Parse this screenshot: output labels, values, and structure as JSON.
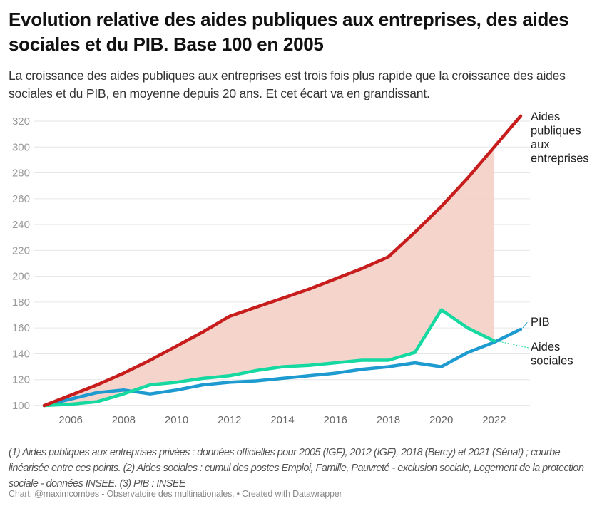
{
  "chart_data": {
    "type": "line",
    "title": "Evolution relative des aides publiques aux entreprises, des aides sociales et du PIB. Base 100 en 2005",
    "subtitle": "La croissance des aides publiques aux entreprises est trois fois plus rapide que la croissance des aides sociales et du PIB, en moyenne depuis 20 ans. Et cet écart va en grandissant.",
    "xlim": [
      2005,
      2023
    ],
    "ylim": [
      100,
      330
    ],
    "x_ticks": [
      "2006",
      "2008",
      "2010",
      "2012",
      "2014",
      "2016",
      "2018",
      "2020",
      "2022"
    ],
    "y_ticks": [
      "100",
      "120",
      "140",
      "160",
      "180",
      "200",
      "220",
      "240",
      "260",
      "280",
      "300",
      "320"
    ],
    "grid": true,
    "shaded_area": {
      "between": [
        "Aides publiques aux entreprises",
        "Aides sociales"
      ],
      "color": "#f4cfc6",
      "x_range": [
        2005,
        2022
      ]
    },
    "series": [
      {
        "name": "Aides publiques aux entreprises",
        "label_lines": [
          "Aides",
          "publiques",
          "aux",
          "entreprises"
        ],
        "color": "#c71e1d",
        "x": [
          2005,
          2006,
          2007,
          2008,
          2009,
          2010,
          2011,
          2012,
          2013,
          2014,
          2015,
          2016,
          2017,
          2018,
          2019,
          2020,
          2021,
          2022,
          2023
        ],
        "values": [
          100,
          108,
          116,
          125,
          135,
          146,
          157,
          169,
          176,
          183,
          190,
          198,
          206,
          215,
          234,
          254,
          276,
          300,
          324
        ]
      },
      {
        "name": "Aides sociales",
        "label_lines": [
          "Aides",
          "sociales"
        ],
        "color": "#15d9a0",
        "x": [
          2005,
          2006,
          2007,
          2008,
          2009,
          2010,
          2011,
          2012,
          2013,
          2014,
          2015,
          2016,
          2017,
          2018,
          2019,
          2020,
          2021,
          2022
        ],
        "values": [
          100,
          101,
          103,
          109,
          116,
          118,
          121,
          123,
          127,
          130,
          131,
          133,
          135,
          135,
          141,
          174,
          160,
          150
        ]
      },
      {
        "name": "PIB",
        "label_lines": [
          "PIB"
        ],
        "color": "#1d9bd0",
        "x": [
          2005,
          2006,
          2007,
          2008,
          2009,
          2010,
          2011,
          2012,
          2013,
          2014,
          2015,
          2016,
          2017,
          2018,
          2019,
          2020,
          2021,
          2022,
          2023
        ],
        "values": [
          100,
          105,
          110,
          112,
          109,
          112,
          116,
          118,
          119,
          121,
          123,
          125,
          128,
          130,
          133,
          130,
          141,
          149,
          159
        ]
      }
    ]
  },
  "notes": "(1) Aides publiques aux entreprises privées : données officielles pour 2005 (IGF), 2012 (IGF), 2018 (Bercy) et 2021 (Sénat) ; courbe linéarisée entre ces points. (2) Aides sociales : cumul des postes Emploi, Famille, Pauvreté - exclusion sociale, Logement de la protection sociale - données INSEE. (3) PIB : INSEE",
  "credit": "Chart: @maximcombes - Observatoire des multinationales.  • Created with Datawrapper"
}
